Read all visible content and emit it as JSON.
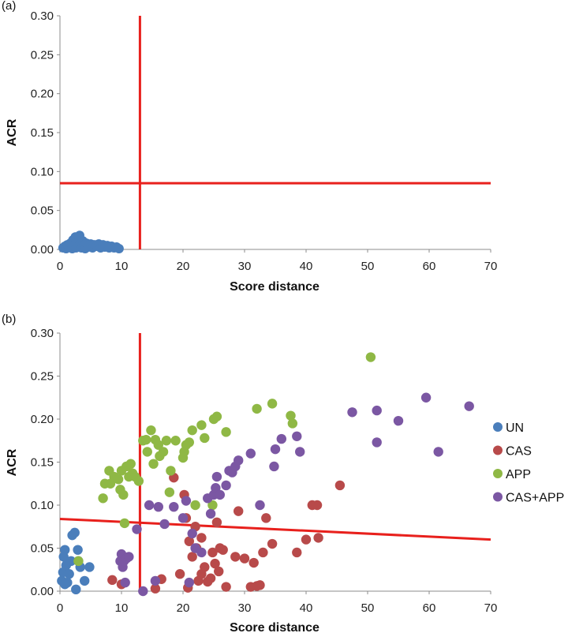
{
  "chart_data": [
    {
      "panel_label": "(a)",
      "type": "scatter",
      "xlabel": "Score distance",
      "ylabel": "ACR",
      "xlim": [
        0,
        70
      ],
      "ylim": [
        0,
        0.3
      ],
      "x_ticks": [
        "0",
        "10",
        "20",
        "30",
        "40",
        "50",
        "60",
        "70"
      ],
      "y_ticks": [
        "0.00",
        "0.05",
        "0.10",
        "0.15",
        "0.20",
        "0.25",
        "0.30"
      ],
      "grid": false,
      "legend": "none",
      "cutoff_lines": [
        {
          "orientation": "vertical",
          "x": 13,
          "color": "#e8201c"
        },
        {
          "orientation": "horizontal",
          "y": 0.085,
          "color": "#e8201c"
        }
      ],
      "series": [
        {
          "color": "#4a7ebb",
          "points": [
            [
              0.5,
              0.002
            ],
            [
              0.8,
              0.004
            ],
            [
              1.0,
              0.001
            ],
            [
              1.2,
              0.006
            ],
            [
              1.5,
              0.003
            ],
            [
              1.7,
              0.008
            ],
            [
              2.0,
              0.001
            ],
            [
              2.1,
              0.012
            ],
            [
              2.3,
              0.005
            ],
            [
              2.5,
              0.016
            ],
            [
              2.6,
              0.002
            ],
            [
              2.8,
              0.009
            ],
            [
              3.0,
              0.004
            ],
            [
              3.2,
              0.018
            ],
            [
              3.3,
              0.007
            ],
            [
              3.5,
              0.002
            ],
            [
              3.7,
              0.011
            ],
            [
              3.9,
              0.005
            ],
            [
              4.1,
              0.001
            ],
            [
              4.3,
              0.008
            ],
            [
              4.6,
              0.003
            ],
            [
              5.0,
              0.007
            ],
            [
              5.3,
              0.002
            ],
            [
              5.6,
              0.006
            ],
            [
              6.0,
              0.004
            ],
            [
              6.3,
              0.007
            ],
            [
              6.6,
              0.002
            ],
            [
              7.0,
              0.006
            ],
            [
              7.3,
              0.003
            ],
            [
              7.7,
              0.005
            ],
            [
              8.0,
              0.002
            ],
            [
              8.4,
              0.004
            ],
            [
              8.8,
              0.002
            ],
            [
              9.2,
              0.003
            ],
            [
              9.6,
              0.001
            ]
          ]
        }
      ]
    },
    {
      "panel_label": "(b)",
      "type": "scatter",
      "xlabel": "Score distance",
      "ylabel": "ACR",
      "xlim": [
        0,
        70
      ],
      "ylim": [
        0,
        0.3
      ],
      "x_ticks": [
        "0",
        "10",
        "20",
        "30",
        "40",
        "50",
        "60",
        "70"
      ],
      "y_ticks": [
        "0.00",
        "0.05",
        "0.10",
        "0.15",
        "0.20",
        "0.25",
        "0.30"
      ],
      "grid": false,
      "legend": "right",
      "cutoff_lines": [
        {
          "orientation": "vertical",
          "x": 13,
          "color": "#e8201c"
        },
        {
          "orientation": "sloped",
          "x": [
            0,
            70
          ],
          "y": [
            0.084,
            0.06
          ],
          "color": "#e8201c"
        }
      ],
      "series": [
        {
          "name": "UN",
          "color": "#4a7ebb",
          "points": [
            [
              0.3,
              0.012
            ],
            [
              0.5,
              0.022
            ],
            [
              0.6,
              0.04
            ],
            [
              0.8,
              0.048
            ],
            [
              1.0,
              0.03
            ],
            [
              1.2,
              0.01
            ],
            [
              1.4,
              0.034
            ],
            [
              1.8,
              0.035
            ],
            [
              2.0,
              0.065
            ],
            [
              2.4,
              0.068
            ],
            [
              2.6,
              0.002
            ],
            [
              2.9,
              0.048
            ],
            [
              3.0,
              0.035
            ],
            [
              3.3,
              0.028
            ],
            [
              4.0,
              0.012
            ],
            [
              4.8,
              0.028
            ],
            [
              0.8,
              0.008
            ],
            [
              1.5,
              0.02
            ]
          ]
        },
        {
          "name": "CAS",
          "color": "#b84a4a",
          "points": [
            [
              8.5,
              0.013
            ],
            [
              10.0,
              0.008
            ],
            [
              15.5,
              0.003
            ],
            [
              16.5,
              0.014
            ],
            [
              18.5,
              0.132
            ],
            [
              19.5,
              0.02
            ],
            [
              20.2,
              0.112
            ],
            [
              20.5,
              0.085
            ],
            [
              20.8,
              0.004
            ],
            [
              21.0,
              0.058
            ],
            [
              21.5,
              0.04
            ],
            [
              22.0,
              0.075
            ],
            [
              22.2,
              0.05
            ],
            [
              22.5,
              0.012
            ],
            [
              23.0,
              0.02
            ],
            [
              23.0,
              0.062
            ],
            [
              23.5,
              0.028
            ],
            [
              24.0,
              0.011
            ],
            [
              24.5,
              0.015
            ],
            [
              24.8,
              0.045
            ],
            [
              25.2,
              0.032
            ],
            [
              25.5,
              0.08
            ],
            [
              25.8,
              0.023
            ],
            [
              26.0,
              0.05
            ],
            [
              26.5,
              0.048
            ],
            [
              27.0,
              0.005
            ],
            [
              28.5,
              0.04
            ],
            [
              29.0,
              0.093
            ],
            [
              30.0,
              0.038
            ],
            [
              31.0,
              0.005
            ],
            [
              31.5,
              0.033
            ],
            [
              32.0,
              0.006
            ],
            [
              32.5,
              0.007
            ],
            [
              33.0,
              0.045
            ],
            [
              33.5,
              0.085
            ],
            [
              34.5,
              0.055
            ],
            [
              38.5,
              0.045
            ],
            [
              40.0,
              0.06
            ],
            [
              41.0,
              0.1
            ],
            [
              41.8,
              0.1
            ],
            [
              42.0,
              0.062
            ],
            [
              45.5,
              0.123
            ]
          ]
        },
        {
          "name": "APP",
          "color": "#8fb845",
          "points": [
            [
              3.0,
              0.035
            ],
            [
              7.0,
              0.108
            ],
            [
              7.3,
              0.125
            ],
            [
              8.0,
              0.14
            ],
            [
              8.2,
              0.125
            ],
            [
              8.8,
              0.133
            ],
            [
              9.5,
              0.13
            ],
            [
              9.8,
              0.118
            ],
            [
              10.0,
              0.14
            ],
            [
              10.3,
              0.112
            ],
            [
              10.5,
              0.079
            ],
            [
              10.8,
              0.145
            ],
            [
              11.2,
              0.133
            ],
            [
              11.5,
              0.148
            ],
            [
              11.8,
              0.137
            ],
            [
              12.2,
              0.133
            ],
            [
              12.8,
              0.128
            ],
            [
              13.5,
              0.175
            ],
            [
              14.0,
              0.176
            ],
            [
              14.2,
              0.162
            ],
            [
              14.8,
              0.187
            ],
            [
              15.2,
              0.148
            ],
            [
              15.5,
              0.176
            ],
            [
              16.0,
              0.17
            ],
            [
              16.2,
              0.157
            ],
            [
              16.8,
              0.162
            ],
            [
              17.3,
              0.175
            ],
            [
              17.8,
              0.115
            ],
            [
              18.0,
              0.14
            ],
            [
              18.8,
              0.175
            ],
            [
              20.0,
              0.155
            ],
            [
              20.2,
              0.162
            ],
            [
              20.5,
              0.17
            ],
            [
              21.0,
              0.173
            ],
            [
              21.5,
              0.187
            ],
            [
              22.0,
              0.1
            ],
            [
              23.0,
              0.193
            ],
            [
              23.5,
              0.178
            ],
            [
              24.8,
              0.1
            ],
            [
              25.0,
              0.2
            ],
            [
              25.5,
              0.203
            ],
            [
              27.0,
              0.185
            ],
            [
              32.0,
              0.212
            ],
            [
              34.5,
              0.218
            ],
            [
              37.5,
              0.204
            ],
            [
              37.8,
              0.195
            ],
            [
              50.5,
              0.272
            ]
          ]
        },
        {
          "name": "CAS+APP",
          "color": "#7b57a3",
          "points": [
            [
              9.8,
              0.035
            ],
            [
              10.0,
              0.043
            ],
            [
              10.2,
              0.028
            ],
            [
              10.4,
              0.035
            ],
            [
              10.6,
              0.01
            ],
            [
              10.8,
              0.038
            ],
            [
              11.2,
              0.04
            ],
            [
              12.5,
              0.072
            ],
            [
              13.5,
              0.0
            ],
            [
              14.5,
              0.1
            ],
            [
              15.5,
              0.012
            ],
            [
              16.0,
              0.098
            ],
            [
              17.0,
              0.078
            ],
            [
              18.5,
              0.098
            ],
            [
              20.0,
              0.085
            ],
            [
              20.5,
              0.105
            ],
            [
              21.0,
              0.01
            ],
            [
              21.5,
              0.067
            ],
            [
              22.0,
              0.05
            ],
            [
              23.0,
              0.045
            ],
            [
              24.0,
              0.108
            ],
            [
              24.5,
              0.09
            ],
            [
              25.0,
              0.112
            ],
            [
              25.3,
              0.12
            ],
            [
              25.5,
              0.133
            ],
            [
              26.0,
              0.112
            ],
            [
              27.0,
              0.123
            ],
            [
              27.5,
              0.14
            ],
            [
              28.0,
              0.138
            ],
            [
              28.5,
              0.145
            ],
            [
              29.0,
              0.152
            ],
            [
              31.0,
              0.16
            ],
            [
              32.5,
              0.1
            ],
            [
              34.8,
              0.145
            ],
            [
              35.0,
              0.165
            ],
            [
              36.0,
              0.177
            ],
            [
              38.5,
              0.18
            ],
            [
              39.0,
              0.162
            ],
            [
              47.5,
              0.208
            ],
            [
              51.5,
              0.21
            ],
            [
              51.5,
              0.173
            ],
            [
              55.0,
              0.198
            ],
            [
              59.5,
              0.225
            ],
            [
              61.5,
              0.162
            ],
            [
              66.5,
              0.215
            ]
          ]
        }
      ]
    }
  ]
}
